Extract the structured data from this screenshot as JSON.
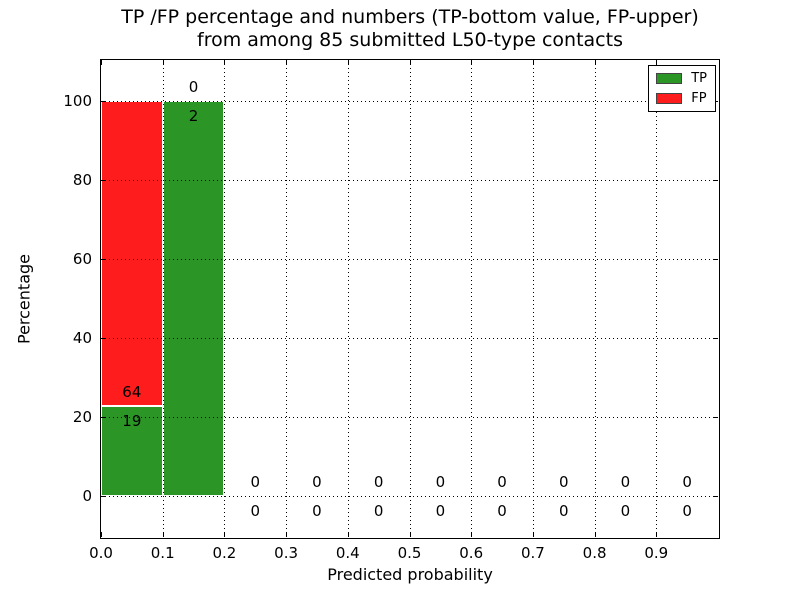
{
  "figure": {
    "title_line1": "TP /FP percentage and numbers (TP-bottom value, FP-upper)",
    "title_line2": "from among 85 submitted L50-type contacts"
  },
  "chart_data": {
    "type": "bar",
    "stacked": true,
    "title": "TP /FP percentage and numbers (TP-bottom value, FP-upper) from among 85 submitted L50-type contacts",
    "xlabel": "Predicted probability",
    "ylabel": "Percentage",
    "xlim": [
      0.0,
      1.0
    ],
    "ylim": [
      -10.3,
      110.3
    ],
    "xticks": [
      "0.0",
      "0.1",
      "0.2",
      "0.3",
      "0.4",
      "0.5",
      "0.6",
      "0.7",
      "0.8",
      "0.9"
    ],
    "yticks": [
      0,
      20,
      40,
      60,
      80,
      100
    ],
    "grid": "dotted",
    "grid_above_bars": true,
    "legend_position": "upper right",
    "bar_width": 0.1,
    "series": [
      {
        "name": "TP",
        "color": "#2b9626"
      },
      {
        "name": "FP",
        "color": "#ff1c1c"
      }
    ],
    "bins": [
      {
        "range": [
          0.0,
          0.1
        ],
        "tp": 19,
        "fp": 64,
        "tp_pct": 22.9,
        "total_pct": 100
      },
      {
        "range": [
          0.1,
          0.2
        ],
        "tp": 2,
        "fp": 0,
        "tp_pct": 100,
        "total_pct": 100
      },
      {
        "range": [
          0.2,
          0.3
        ],
        "tp": 0,
        "fp": 0,
        "tp_pct": 0,
        "total_pct": 0
      },
      {
        "range": [
          0.3,
          0.4
        ],
        "tp": 0,
        "fp": 0,
        "tp_pct": 0,
        "total_pct": 0
      },
      {
        "range": [
          0.4,
          0.5
        ],
        "tp": 0,
        "fp": 0,
        "tp_pct": 0,
        "total_pct": 0
      },
      {
        "range": [
          0.5,
          0.6
        ],
        "tp": 0,
        "fp": 0,
        "tp_pct": 0,
        "total_pct": 0
      },
      {
        "range": [
          0.6,
          0.7
        ],
        "tp": 0,
        "fp": 0,
        "tp_pct": 0,
        "total_pct": 0
      },
      {
        "range": [
          0.7,
          0.8
        ],
        "tp": 0,
        "fp": 0,
        "tp_pct": 0,
        "total_pct": 0
      },
      {
        "range": [
          0.8,
          0.9
        ],
        "tp": 0,
        "fp": 0,
        "tp_pct": 0,
        "total_pct": 0
      },
      {
        "range": [
          0.9,
          1.0
        ],
        "tp": 0,
        "fp": 0,
        "tp_pct": 0,
        "total_pct": 0
      }
    ]
  }
}
